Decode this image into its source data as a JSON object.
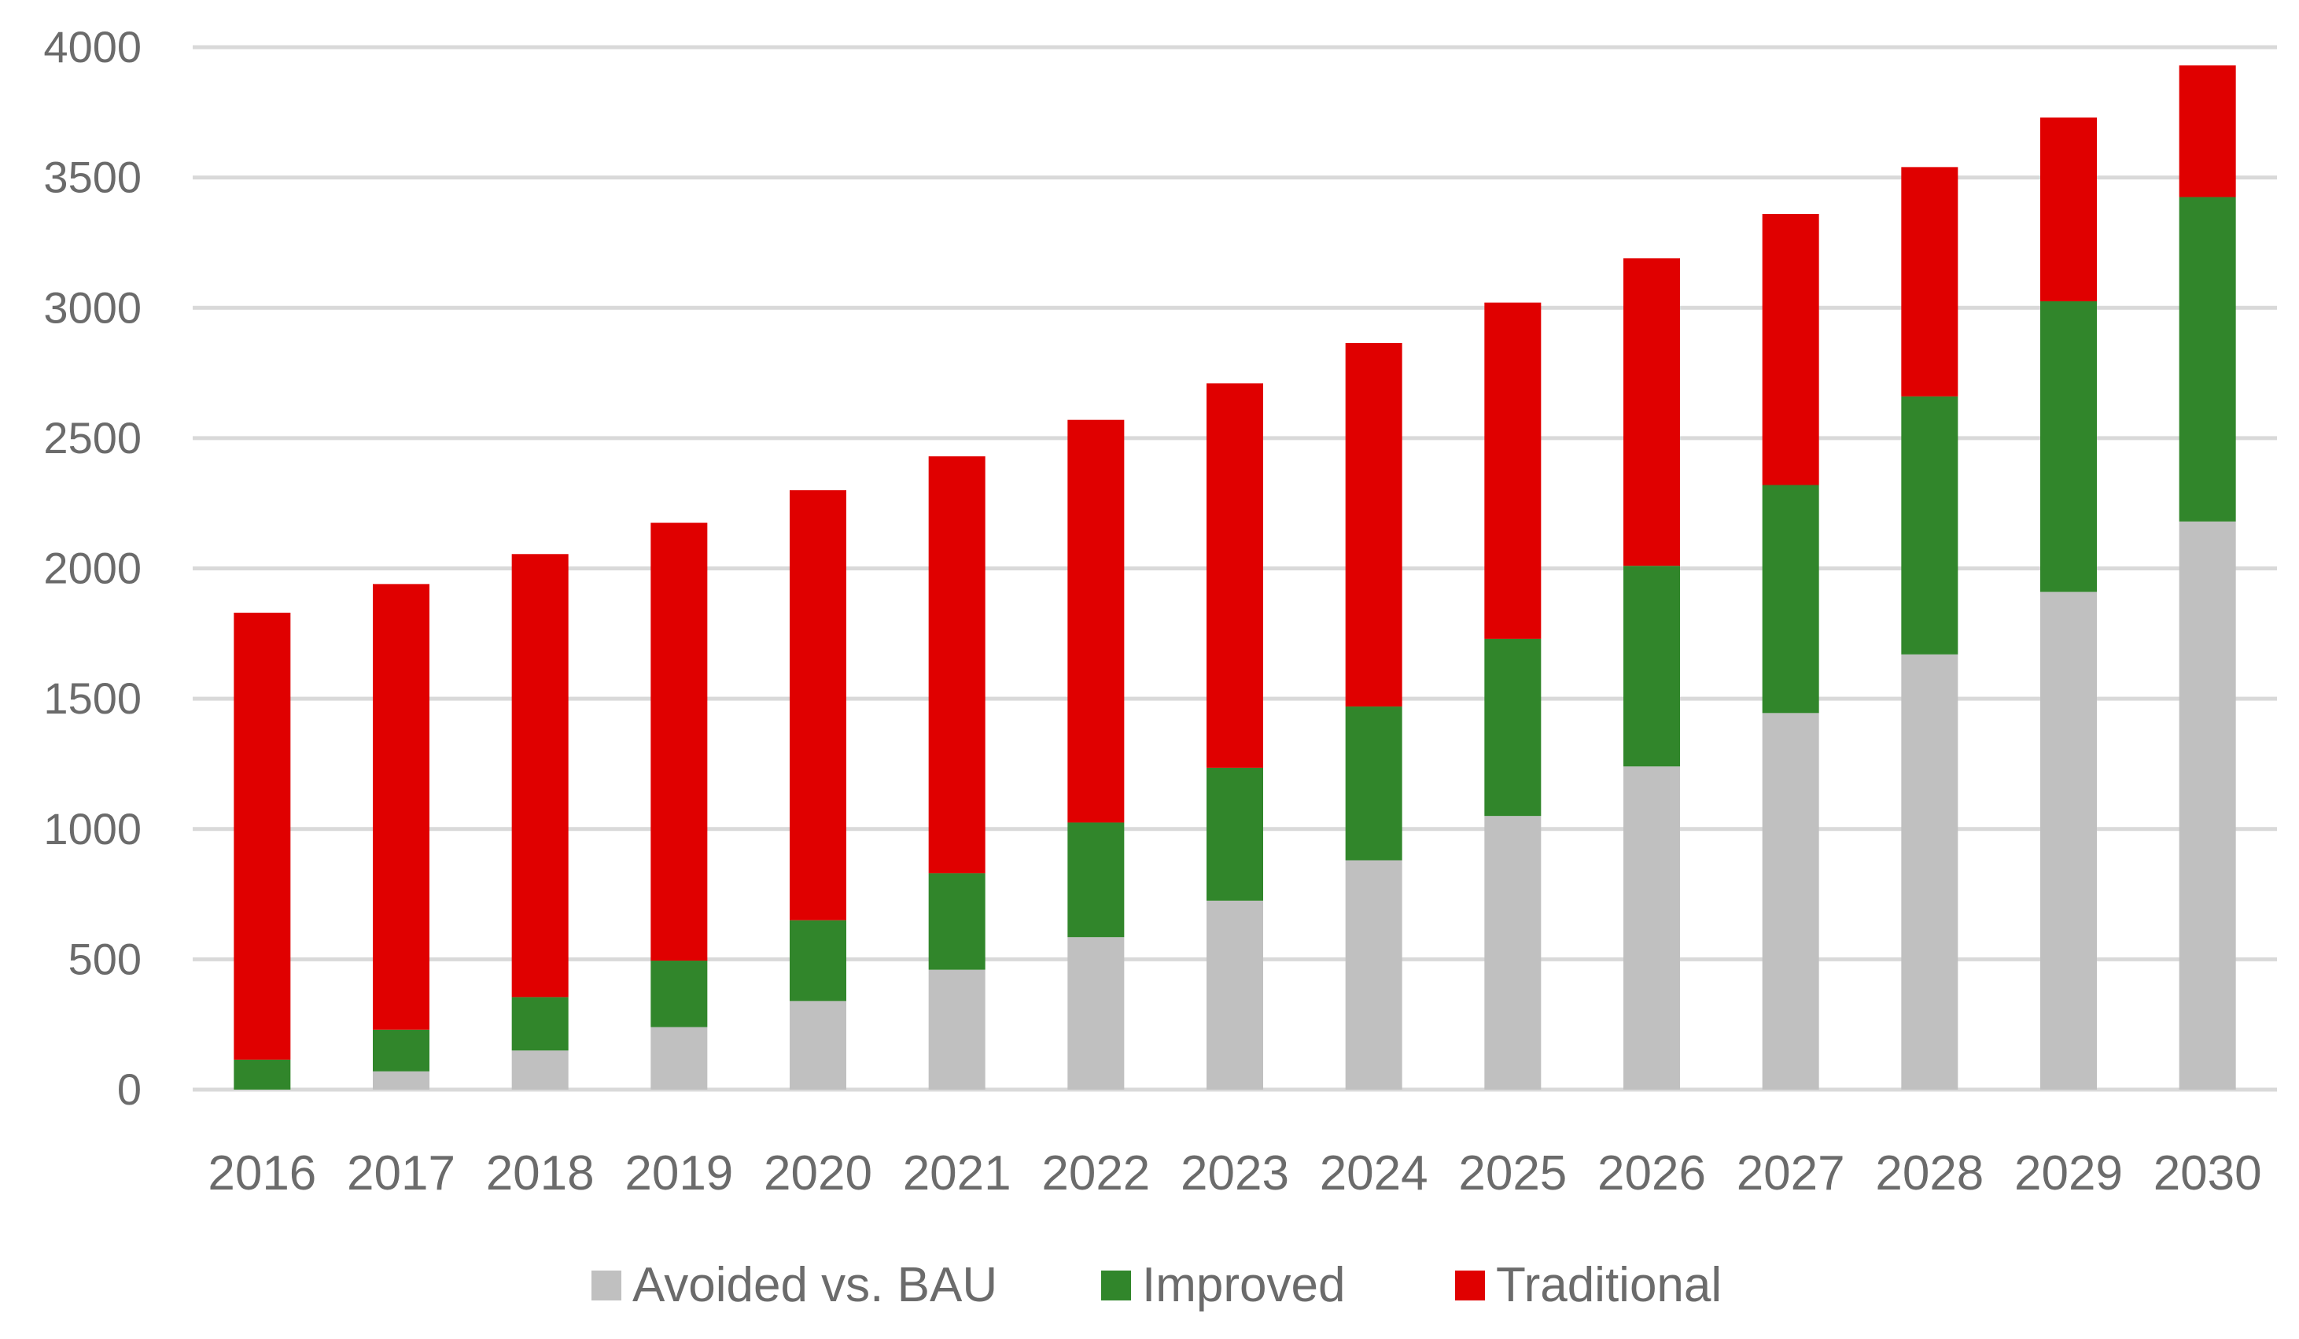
{
  "chart_data": {
    "type": "bar",
    "stacked": true,
    "title": "",
    "xlabel": "",
    "ylabel": "",
    "ylim": [
      0,
      4000
    ],
    "yticks": [
      0,
      500,
      1000,
      1500,
      2000,
      2500,
      3000,
      3500,
      4000
    ],
    "grid": true,
    "legend_position": "bottom",
    "categories": [
      "2016",
      "2017",
      "2018",
      "2019",
      "2020",
      "2021",
      "2022",
      "2023",
      "2024",
      "2025",
      "2026",
      "2027",
      "2028",
      "2029",
      "2030"
    ],
    "series": [
      {
        "name": "Avoided vs. BAU",
        "color": "#c0c0c0",
        "values": [
          0,
          70,
          150,
          240,
          340,
          460,
          585,
          725,
          880,
          1050,
          1240,
          1445,
          1670,
          1910,
          2180
        ]
      },
      {
        "name": "Improved",
        "color": "#31862b",
        "values": [
          115,
          160,
          205,
          255,
          310,
          370,
          440,
          510,
          590,
          680,
          770,
          875,
          990,
          1115,
          1245
        ]
      },
      {
        "name": "Traditional",
        "color": "#e00000",
        "values": [
          1715,
          1710,
          1700,
          1680,
          1650,
          1600,
          1545,
          1475,
          1395,
          1290,
          1180,
          1040,
          880,
          705,
          505
        ]
      }
    ]
  }
}
